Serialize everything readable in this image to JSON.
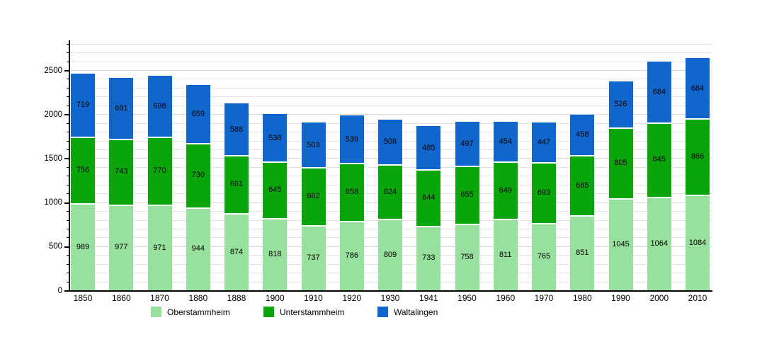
{
  "chart_data": {
    "type": "bar",
    "stacked": true,
    "title": "",
    "xlabel": "",
    "ylabel": "",
    "categories": [
      "1850",
      "1860",
      "1870",
      "1880",
      "1888",
      "1900",
      "1910",
      "1920",
      "1930",
      "1941",
      "1950",
      "1960",
      "1970",
      "1980",
      "1990",
      "2000",
      "2010"
    ],
    "series": [
      {
        "name": "Oberstammheim",
        "color": "#97e09d",
        "values": [
          989,
          977,
          971,
          944,
          874,
          818,
          737,
          786,
          809,
          733,
          758,
          811,
          765,
          851,
          1045,
          1064,
          1084
        ]
      },
      {
        "name": "Unterstammheim",
        "color": "#0aa50a",
        "values": [
          756,
          743,
          770,
          730,
          661,
          645,
          662,
          658,
          624,
          644,
          655,
          649,
          693,
          685,
          805,
          845,
          866
        ]
      },
      {
        "name": "Waltalingen",
        "color": "#1166cc",
        "values": [
          719,
          691,
          698,
          659,
          588,
          538,
          503,
          539,
          508,
          485,
          497,
          454,
          447,
          458,
          526,
          684,
          684
        ]
      }
    ],
    "ylim": [
      0,
      2840
    ],
    "yticks": [
      0,
      500,
      1000,
      1500,
      2000,
      2500
    ],
    "minor_tick_step": 100,
    "grid": "horizontal",
    "legend_position": "bottom",
    "bar_value_labels": "shown inside each segment",
    "axis_color": "#000000",
    "gridline_color": "#e4e4e4"
  }
}
